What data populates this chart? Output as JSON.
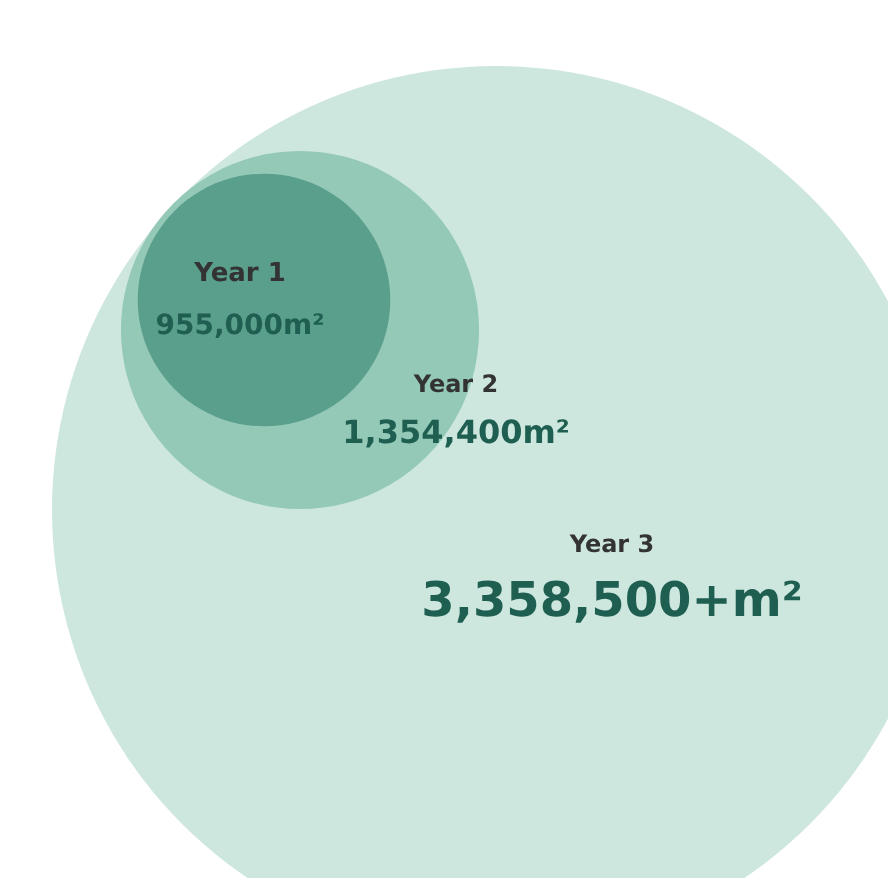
{
  "chart_data": {
    "type": "other",
    "categories": [
      "Year 3",
      "Year 2",
      "Year 1"
    ],
    "values": [
      3358500,
      1354400,
      955000
    ],
    "value_labels": [
      "3,358,500+m²",
      "1,354,400m²",
      "955,000m²"
    ],
    "colors": [
      "#cde7de",
      "#93c9b6",
      "#5a9e8c"
    ]
  }
}
